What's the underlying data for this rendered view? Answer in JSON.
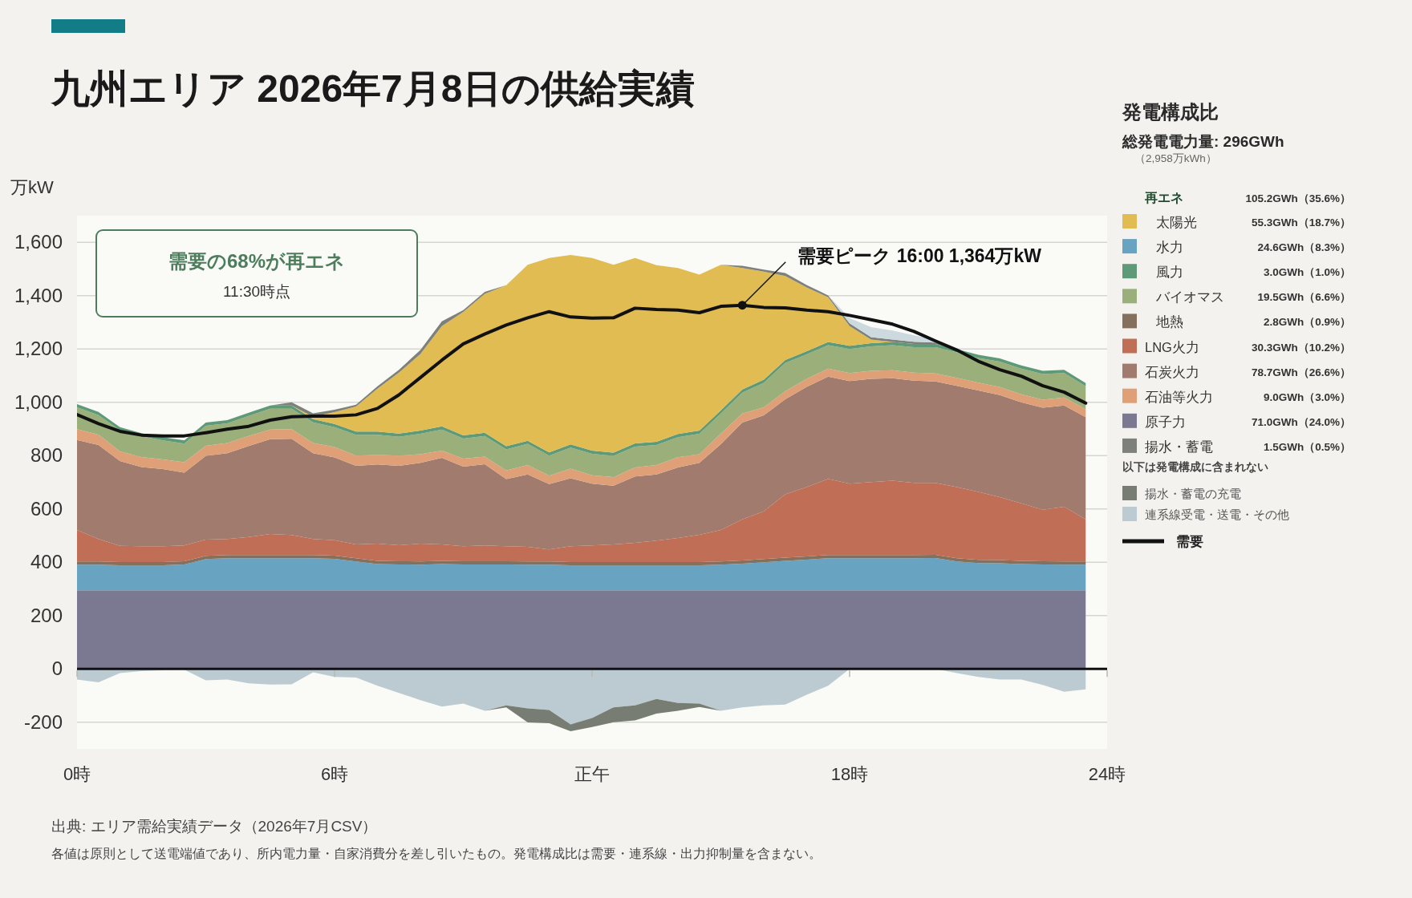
{
  "chart_data": [
    {
      "type": "area",
      "title": "九州エリア 2026年7月8日の供給実績",
      "ylabel": "万kW",
      "legend_title": "発電構成比",
      "legend": "right",
      "stacked": true,
      "grid": "y",
      "xlim": [
        0,
        24
      ],
      "xticks": [
        {
          "value": 0,
          "label": "0時"
        },
        {
          "value": 6,
          "label": "6時"
        },
        {
          "value": 12,
          "label": "正午"
        },
        {
          "value": 18,
          "label": "18時"
        },
        {
          "value": 24,
          "label": "24時"
        }
      ],
      "ylim": [
        -300,
        1700
      ],
      "yticks": [
        -200,
        0,
        200,
        400,
        600,
        800,
        {
          "value": 1000,
          "label": "1,000"
        },
        {
          "value": 1200,
          "label": "1,200"
        },
        {
          "value": 1400,
          "label": "1,400"
        },
        {
          "value": 1600,
          "label": "1,600"
        }
      ],
      "annotations": [
        {
          "text": "需要ピーク 16:00 1,364万kW",
          "x": 15.5,
          "y": 1364
        },
        "需要の68%が再エネ",
        "11:30時点",
        "総発電電力量: 296GWh",
        "（2,958万kWh）",
        "再エネ",
        "105.2GWh（35.6%）",
        "55.3GWh（18.7%）",
        "24.6GWh（8.3%）",
        "3.0GWh（1.0%）",
        "19.5GWh（6.6%）",
        "2.8GWh（0.9%）",
        "30.3GWh（10.2%）",
        "78.7GWh（26.6%）",
        "9.0GWh（3.0%）",
        "71.0GWh（24.0%）",
        "1.5GWh（0.5%）",
        "以下は発電構成に含まれない",
        "出典: エリア需給実績データ（2026年7月CSV）",
        "各値は原則として送電端値であり、所内電力量・自家消費分を差し引いたもの。発電構成比は需要・連系線・出力抑制量を含まない。"
      ],
      "x": [
        0,
        0.5,
        1,
        1.5,
        2,
        2.5,
        3,
        3.5,
        4,
        4.5,
        5,
        5.5,
        6,
        6.5,
        7,
        7.5,
        8,
        8.5,
        9,
        9.5,
        10,
        10.5,
        11,
        11.5,
        12,
        12.5,
        13,
        13.5,
        14,
        14.5,
        15,
        15.5,
        16,
        16.5,
        17,
        17.5,
        18,
        18.5,
        19,
        19.5,
        20,
        20.5,
        21,
        21.5,
        22,
        22.5,
        23,
        23.5
      ],
      "series": [
        {
          "name": "原子力",
          "color": "#7b7891",
          "values": [
            295,
            295,
            295,
            295,
            295,
            295,
            295,
            295,
            295,
            295,
            295,
            295,
            295,
            295,
            295,
            295,
            295,
            295,
            295,
            295,
            295,
            295,
            295,
            295,
            295,
            295,
            295,
            295,
            295,
            295,
            295,
            295,
            295,
            295,
            295,
            295,
            295,
            295,
            295,
            295,
            295,
            295,
            295,
            295,
            295,
            295,
            295,
            295
          ]
        },
        {
          "name": "水力",
          "color": "#68a3c2",
          "values": [
            96,
            96,
            94,
            94,
            94,
            97,
            117,
            120,
            120,
            120,
            120,
            120,
            118,
            108,
            98,
            97,
            96,
            98,
            97,
            97,
            97,
            96,
            96,
            94,
            94,
            94,
            94,
            94,
            94,
            94,
            96,
            100,
            105,
            110,
            115,
            120,
            120,
            120,
            120,
            120,
            121,
            108,
            102,
            101,
            98,
            97,
            96,
            96
          ]
        },
        {
          "name": "地熱",
          "color": "#85705e",
          "values": [
            12,
            12,
            12,
            12,
            12,
            12,
            12,
            12,
            12,
            12,
            12,
            12,
            12,
            12,
            12,
            12,
            12,
            12,
            12,
            12,
            12,
            12,
            12,
            12,
            12,
            12,
            12,
            12,
            12,
            12,
            12,
            12,
            12,
            12,
            12,
            12,
            12,
            12,
            12,
            12,
            12,
            12,
            12,
            12,
            12,
            12,
            12,
            12
          ]
        },
        {
          "name": "LNG火力",
          "color": "#c06f56",
          "values": [
            118,
            84,
            61,
            59,
            59,
            59,
            61,
            60,
            68,
            79,
            75,
            60,
            58,
            52,
            65,
            60,
            67,
            62,
            56,
            59,
            56,
            55,
            45,
            59,
            62,
            66,
            72,
            80,
            90,
            102,
            118,
            154,
            179,
            238,
            260,
            286,
            268,
            274,
            279,
            271,
            270,
            267,
            255,
            236,
            216,
            193,
            205,
            158
          ]
        },
        {
          "name": "石炭火力",
          "color": "#a07b6e",
          "values": [
            338,
            353,
            318,
            297,
            290,
            273,
            314,
            322,
            341,
            356,
            361,
            322,
            310,
            295,
            297,
            298,
            303,
            325,
            299,
            305,
            252,
            271,
            245,
            255,
            232,
            220,
            249,
            248,
            265,
            270,
            322,
            363,
            360,
            356,
            376,
            383,
            385,
            387,
            384,
            383,
            380,
            380,
            380,
            383,
            379,
            383,
            380,
            383
          ]
        },
        {
          "name": "石油等火力",
          "color": "#dfa078",
          "values": [
            40,
            39,
            36,
            38,
            36,
            39,
            38,
            38,
            38,
            36,
            36,
            38,
            39,
            38,
            36,
            38,
            32,
            27,
            30,
            28,
            32,
            36,
            32,
            36,
            31,
            32,
            34,
            36,
            38,
            32,
            40,
            34,
            30,
            30,
            30,
            30,
            30,
            30,
            30,
            30,
            30,
            30,
            30,
            30,
            30,
            30,
            30,
            30
          ]
        },
        {
          "name": "バイオマス",
          "color": "#9aaf79",
          "values": [
            82,
            73,
            79,
            77,
            71,
            70,
            75,
            74,
            75,
            78,
            77,
            78,
            75,
            78,
            75,
            71,
            77,
            79,
            75,
            78,
            79,
            79,
            75,
            79,
            81,
            80,
            78,
            75,
            75,
            77,
            75,
            78,
            92,
            106,
            92,
            88,
            90,
            92,
            94,
            96,
            99,
            95,
            92,
            96,
            96,
            96,
            92,
            86
          ]
        },
        {
          "name": "風力",
          "color": "#5f9a78",
          "values": [
            12,
            12,
            12,
            12,
            12,
            12,
            12,
            12,
            12,
            12,
            12,
            12,
            12,
            12,
            12,
            12,
            12,
            12,
            12,
            12,
            12,
            12,
            12,
            12,
            12,
            12,
            12,
            12,
            12,
            12,
            12,
            12,
            12,
            12,
            12,
            12,
            12,
            12,
            12,
            12,
            12,
            12,
            12,
            12,
            12,
            12,
            12,
            12
          ]
        },
        {
          "name": "太陽光",
          "color": "#e0bc52",
          "values": [
            0,
            0,
            0,
            0,
            0,
            0,
            0,
            0,
            0,
            0,
            0,
            9,
            44,
            94,
            161,
            228,
            287,
            376,
            463,
            521,
            604,
            660,
            729,
            711,
            722,
            705,
            695,
            662,
            623,
            585,
            546,
            456,
            405,
            315,
            239,
            168,
            74,
            13,
            0,
            0,
            0,
            0,
            0,
            0,
            0,
            0,
            0,
            0
          ]
        },
        {
          "name": "揚水・蓄電",
          "color": "#7e817a",
          "values": [
            0,
            0,
            0,
            0,
            0,
            0,
            0,
            0,
            0,
            0,
            12,
            13,
            9,
            7,
            9,
            11,
            15,
            18,
            7,
            7,
            0,
            0,
            0,
            0,
            0,
            0,
            0,
            0,
            0,
            0,
            0,
            8,
            8,
            11,
            9,
            7,
            10,
            9,
            9,
            8,
            5,
            0,
            0,
            0,
            0,
            0,
            0,
            0
          ]
        },
        {
          "color": "#ccd9df",
          "values": [
            null,
            null,
            null,
            null,
            null,
            null,
            null,
            null,
            null,
            null,
            null,
            null,
            null,
            null,
            null,
            null,
            null,
            null,
            null,
            null,
            null,
            null,
            null,
            null,
            null,
            null,
            null,
            null,
            null,
            null,
            null,
            null,
            null,
            null,
            null,
            0,
            20,
            38,
            34,
            24,
            11,
            0,
            null,
            null,
            null,
            null,
            null,
            null
          ]
        },
        {
          "name": "需要",
          "type": "line",
          "color": "#111111",
          "values": [
            954,
            920,
            891,
            877,
            874,
            874,
            886,
            899,
            910,
            933,
            946,
            948,
            948,
            953,
            977,
            1028,
            1093,
            1158,
            1219,
            1256,
            1290,
            1317,
            1340,
            1320,
            1316,
            1317,
            1353,
            1348,
            1346,
            1336,
            1360,
            1364,
            1356,
            1354,
            1346,
            1340,
            1326,
            1310,
            1293,
            1266,
            1230,
            1196,
            1154,
            1122,
            1098,
            1062,
            1038,
            997
          ]
        }
      ]
    },
    {
      "type": "area",
      "stacked": true,
      "legend": "right",
      "xlim": [
        0,
        24
      ],
      "ylim": [
        -300,
        1700
      ],
      "ref_lines": [
        {
          "axis": "y",
          "value": 0,
          "color": "#111111"
        }
      ],
      "x": [
        0,
        0.5,
        1,
        1.5,
        2,
        2.5,
        3,
        3.5,
        4,
        4.5,
        5,
        5.5,
        6,
        6.5,
        7,
        7.5,
        8,
        8.5,
        9,
        9.5,
        10,
        10.5,
        11,
        11.5,
        12,
        12.5,
        13,
        13.5,
        14,
        14.5,
        15,
        15.5,
        16,
        16.5,
        17,
        17.5,
        18,
        18.5,
        19,
        19.5,
        20,
        20.5,
        21,
        21.5,
        22,
        22.5,
        23,
        23.5
      ],
      "series": [
        {
          "name": "連系線受電・送電・その他",
          "color": "#bccbd2",
          "values": [
            -40,
            -50,
            -16,
            -8,
            -5,
            -3,
            -43,
            -40,
            -54,
            -59,
            -58,
            -13,
            -30,
            -32,
            -63,
            -90,
            -117,
            -141,
            -130,
            -157,
            -137,
            -148,
            -154,
            -208,
            -184,
            -144,
            -137,
            -113,
            -128,
            -130,
            -157,
            -144,
            -137,
            -134,
            -97,
            -63,
            0,
            0,
            0,
            0,
            0,
            -16,
            -30,
            -40,
            -40,
            -60,
            -86,
            -77
          ]
        },
        {
          "name": "揚水・蓄電の充電",
          "color": "#787d73",
          "values": [
            0,
            0,
            0,
            0,
            0,
            0,
            0,
            0,
            0,
            0,
            0,
            0,
            0,
            0,
            0,
            0,
            0,
            0,
            0,
            0,
            -7,
            -53,
            -50,
            -26,
            -34,
            -56,
            -56,
            -55,
            -29,
            -13,
            0,
            0,
            0,
            0,
            0,
            0,
            0,
            0,
            0,
            0,
            0,
            0,
            0,
            0,
            0,
            0,
            0,
            0
          ]
        }
      ]
    }
  ]
}
